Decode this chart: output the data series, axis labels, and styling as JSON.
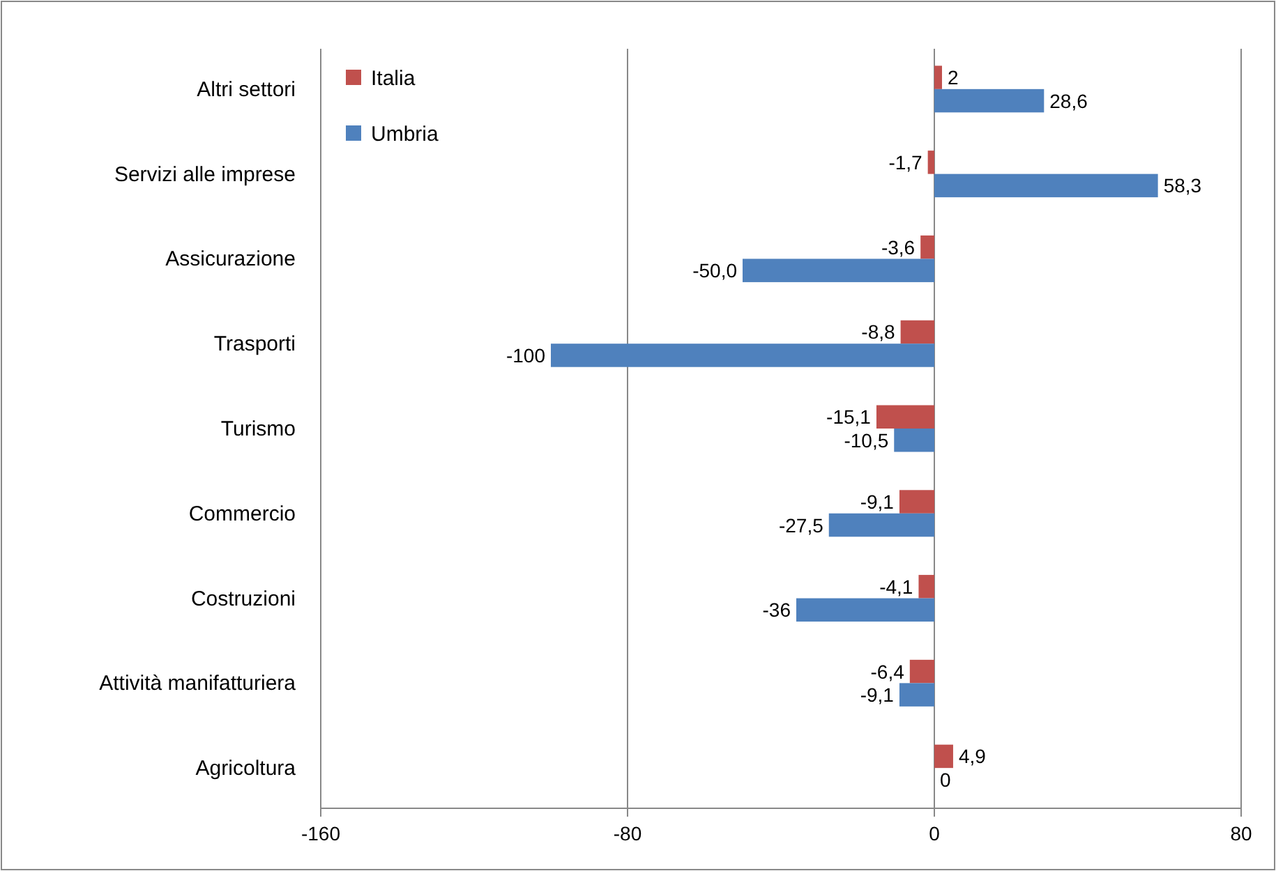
{
  "chart_data": {
    "type": "bar",
    "orientation": "horizontal",
    "categories": [
      "Altri settori",
      "Servizi alle imprese",
      "Assicurazione",
      "Trasporti",
      "Turismo",
      "Commercio",
      "Costruzioni",
      "Attività manifatturiera",
      "Agricoltura"
    ],
    "series": [
      {
        "name": "Italia",
        "color": "#c0504d",
        "values": [
          2,
          -1.7,
          -3.6,
          -8.8,
          -15.1,
          -9.1,
          -4.1,
          -6.4,
          4.9
        ],
        "value_labels": [
          "2",
          "-1,7",
          "-3,6",
          "-8,8",
          "-15,1",
          "-9,1",
          "-4,1",
          "-6,4",
          "4,9"
        ]
      },
      {
        "name": "Umbria",
        "color": "#4f81bd",
        "values": [
          28.6,
          58.3,
          -50.0,
          -100,
          -10.5,
          -27.5,
          -36,
          -9.1,
          0
        ],
        "value_labels": [
          "28,6",
          "58,3",
          "-50,0",
          "-100",
          "-10,5",
          "-27,5",
          "-36",
          "-9,1",
          "0"
        ]
      }
    ],
    "xlim": [
      -160,
      80
    ],
    "xticks": [
      -160,
      -80,
      0,
      80
    ],
    "grid": "x",
    "legend": "top left"
  }
}
